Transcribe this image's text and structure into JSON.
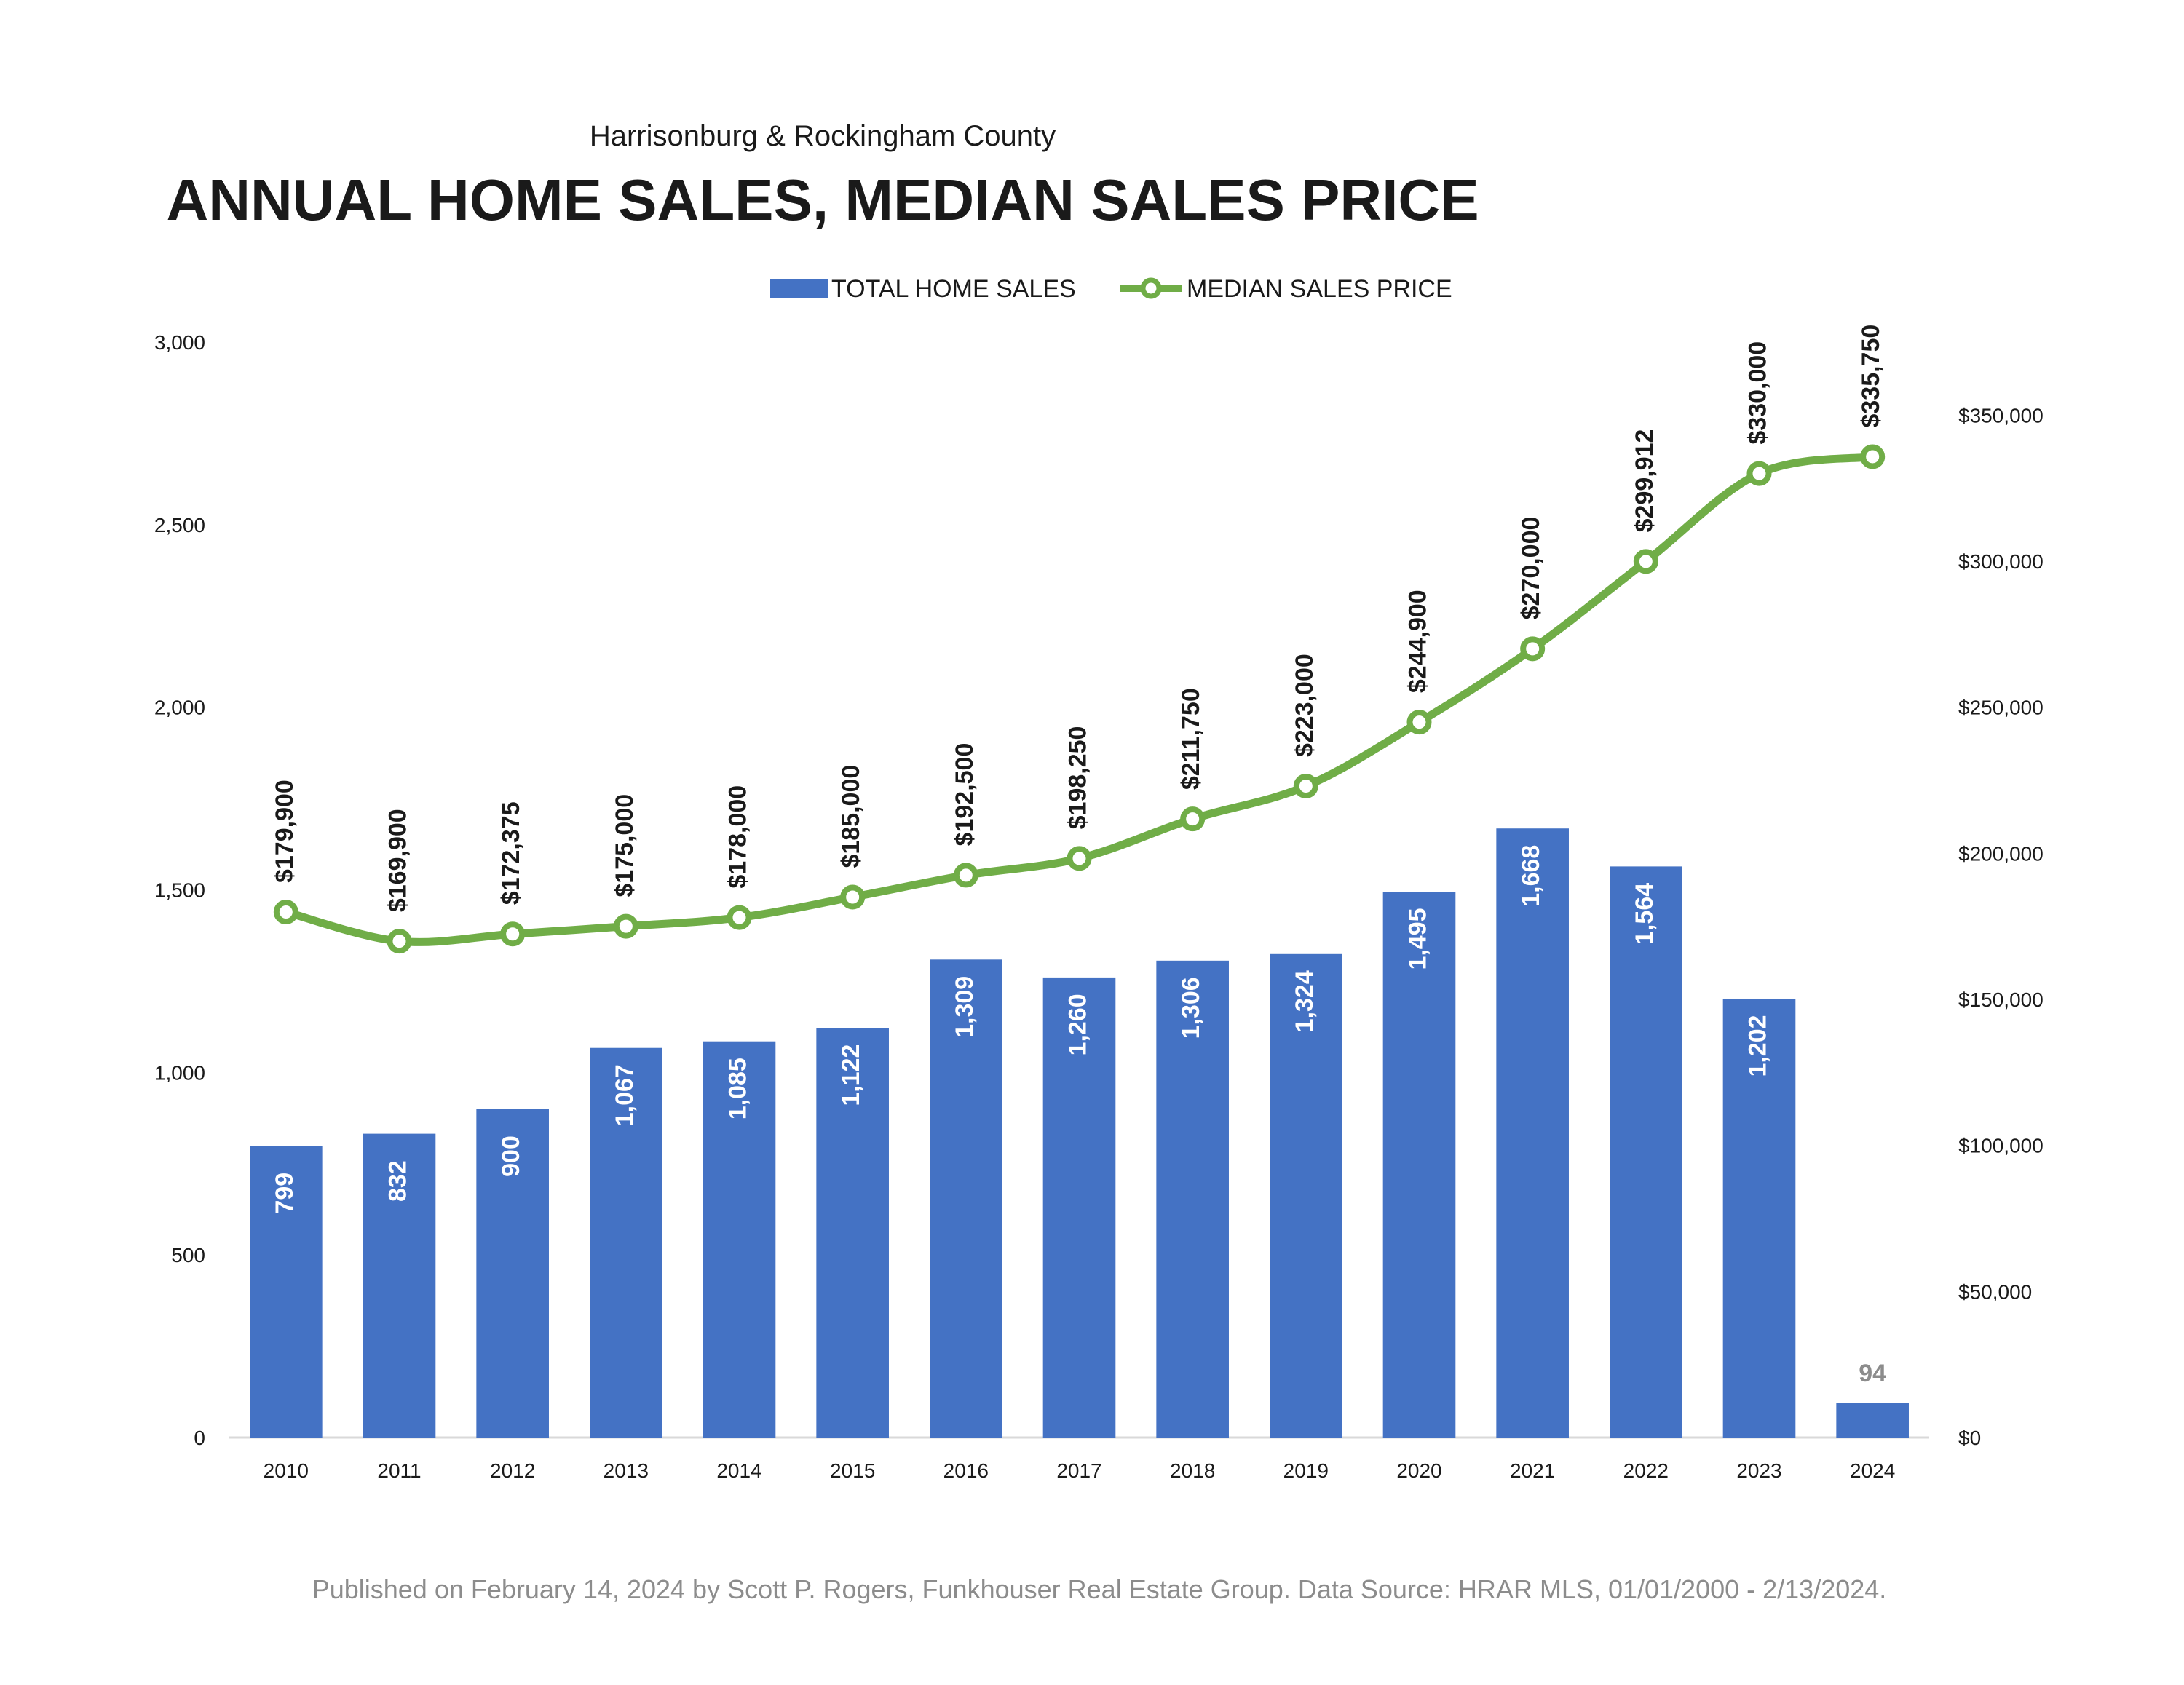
{
  "chart_data": {
    "type": "bar",
    "subtitle": "Harrisonburg & Rockingham County",
    "title": "ANNUAL HOME SALES, MEDIAN SALES PRICE",
    "categories": [
      "2010",
      "2011",
      "2012",
      "2013",
      "2014",
      "2015",
      "2016",
      "2017",
      "2018",
      "2019",
      "2020",
      "2021",
      "2022",
      "2023",
      "2024"
    ],
    "series": [
      {
        "name": "TOTAL HOME SALES",
        "type": "bar",
        "axis": "left",
        "color": "#4472c4",
        "values": [
          799,
          832,
          900,
          1067,
          1085,
          1122,
          1309,
          1260,
          1306,
          1324,
          1495,
          1668,
          1564,
          1202,
          94
        ],
        "labels": [
          "799",
          "832",
          "900",
          "1,067",
          "1,085",
          "1,122",
          "1,309",
          "1,260",
          "1,306",
          "1,324",
          "1,495",
          "1,668",
          "1,564",
          "1,202",
          "94"
        ]
      },
      {
        "name": "MEDIAN SALES PRICE",
        "type": "line",
        "axis": "right",
        "color": "#70ad47",
        "values": [
          179900,
          169900,
          172375,
          175000,
          178000,
          185000,
          192500,
          198250,
          211750,
          223000,
          244900,
          270000,
          299912,
          330000,
          335750
        ],
        "labels": [
          "$179,900",
          "$169,900",
          "$172,375",
          "$175,000",
          "$178,000",
          "$185,000",
          "$192,500",
          "$198,250",
          "$211,750",
          "$223,000",
          "$244,900",
          "$270,000",
          "$299,912",
          "$330,000",
          "$335,750"
        ]
      }
    ],
    "y_left": {
      "lim": [
        0,
        3000
      ],
      "ticks": [
        0,
        500,
        1000,
        1500,
        2000,
        2500,
        3000
      ],
      "tick_labels": [
        "0",
        "500",
        "1,000",
        "1,500",
        "2,000",
        "2,500",
        "3,000"
      ]
    },
    "y_right": {
      "lim": [
        0,
        375000
      ],
      "ticks": [
        0,
        50000,
        100000,
        150000,
        200000,
        250000,
        300000,
        350000
      ],
      "tick_labels": [
        "$0",
        "$50,000",
        "$100,000",
        "$150,000",
        "$200,000",
        "$250,000",
        "$300,000",
        "$350,000"
      ]
    },
    "grid": false,
    "legend_position": "top-center"
  },
  "footer": "Published on February 14, 2024 by Scott P. Rogers, Funkhouser Real Estate Group. Data Source: HRAR MLS, 01/01/2000 - 2/13/2024."
}
